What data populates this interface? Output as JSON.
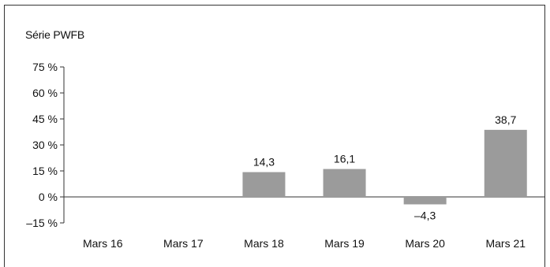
{
  "chart_data": {
    "type": "bar",
    "title": "Série PWFB",
    "xlabel": "",
    "ylabel": "",
    "categories": [
      "Mars 16",
      "Mars 17",
      "Mars 18",
      "Mars 19",
      "Mars 20",
      "Mars 21"
    ],
    "values": [
      null,
      null,
      14.3,
      16.1,
      -4.3,
      38.7
    ],
    "data_labels": [
      "",
      "",
      "14,3",
      "16,1",
      "–4,3",
      "38,7"
    ],
    "yticks": [
      75,
      60,
      45,
      30,
      15,
      0,
      -15
    ],
    "ytick_labels": [
      "75 %",
      "60 %",
      "45 %",
      "30 %",
      "15 %",
      "0 %",
      "–15 %"
    ],
    "ylim": [
      -15,
      75
    ],
    "grid": false,
    "bar_color": "#9b9b9b"
  }
}
